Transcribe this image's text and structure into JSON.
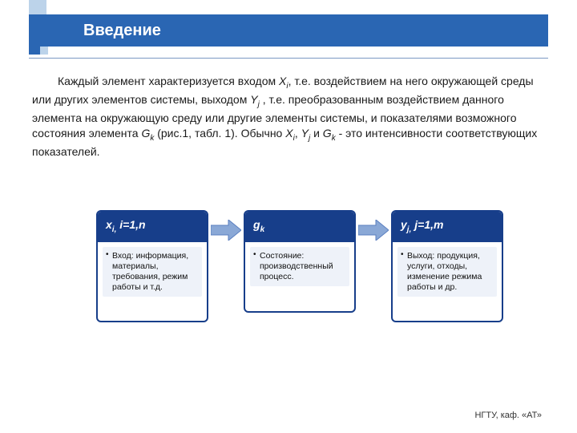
{
  "colors": {
    "accent": "#2a66b3",
    "accent_dark": "#173e8a",
    "accent_light": "#bcd3ea",
    "arrow_fill": "#8aa8d6",
    "bullet_bg": "#eef2f9",
    "text": "#1a1a1a",
    "background": "#ffffff"
  },
  "header": {
    "title": "Введение"
  },
  "paragraph": {
    "text_html": "Каждый элемент характеризуется входом <span class=\"ital\">X<span class=\"sub\">i</span></span>, т.е. воздействием на него окружающей среды или других элементов системы, выходом <span class=\"ital\">Y<span class=\"sub\">j</span></span> , т.е. преобразованным воздействием данного элемента на окружающую среду или другие элементы системы, и показателями возможного состояния элемента <span class=\"ital\">G<span class=\"sub\">k</span></span> (рис.1, табл. 1). Обычно <span class=\"ital\">X<span class=\"sub\">i</span></span>, <span class=\"ital\">Y<span class=\"sub\">j</span></span>  и <span class=\"ital\">G<span class=\"sub\">k</span></span>  - это интенсивности соответствующих показателей."
  },
  "diagram": {
    "type": "flowchart",
    "cards": [
      {
        "header_html": "x<span class=\"subh\">i,</span> i=1,n",
        "bullet": "Вход: информация, материалы, требования, режим работы и т.д."
      },
      {
        "header_html": "g<span class=\"subh\">k</span>",
        "bullet": "Состояние: производственный процесс."
      },
      {
        "header_html": "y<span class=\"subh\">j,</span> j=1,m",
        "bullet": "Выход: продукция, услуги, отходы, изменение режима работы и др."
      }
    ],
    "arrow": {
      "fill": "#8aa8d6",
      "stroke": "#5b7fc0",
      "width": 38,
      "height": 26
    }
  },
  "footer": {
    "text": "НГТУ, каф. «АТ»"
  }
}
